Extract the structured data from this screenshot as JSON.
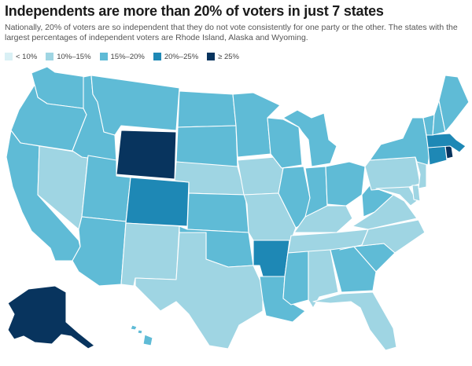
{
  "title": "Independents are more than 20% of voters in just 7 states",
  "subtitle": "Nationally, 20% of voters are so independent that they do not vote consistently for one party or the other. The states with the largest percentages of independent voters are Rhode Island, Alaska and Wyoming.",
  "legend": [
    {
      "label": "< 10%",
      "color": "#d9f0f5"
    },
    {
      "label": "10%–15%",
      "color": "#9fd5e3"
    },
    {
      "label": "15%–20%",
      "color": "#5fbbd6"
    },
    {
      "label": "20%–25%",
      "color": "#1e88b5"
    },
    {
      "label": "≥ 25%",
      "color": "#08345e"
    }
  ],
  "states": {
    "WA": "15-20",
    "OR": "15-20",
    "CA": "15-20",
    "NV": "10-15",
    "ID": "15-20",
    "MT": "15-20",
    "WY": "25+",
    "UT": "15-20",
    "AZ": "15-20",
    "CO": "20-25",
    "NM": "10-15",
    "ND": "15-20",
    "SD": "15-20",
    "NE": "10-15",
    "KS": "15-20",
    "OK": "15-20",
    "TX": "10-15",
    "MN": "15-20",
    "IA": "10-15",
    "MO": "10-15",
    "AR": "20-25",
    "LA": "15-20",
    "WI": "15-20",
    "IL": "15-20",
    "MI": "15-20",
    "IN": "15-20",
    "OH": "15-20",
    "KY": "10-15",
    "TN": "10-15",
    "MS": "15-20",
    "AL": "10-15",
    "GA": "15-20",
    "FL": "10-15",
    "SC": "15-20",
    "NC": "10-15",
    "VA": "10-15",
    "WV": "15-20",
    "MD": "10-15",
    "DE": "10-15",
    "NJ": "10-15",
    "PA": "10-15",
    "NY": "15-20",
    "CT": "20-25",
    "RI": "25+",
    "MA": "20-25",
    "VT": "15-20",
    "NH": "15-20",
    "ME": "15-20",
    "AK": "25+",
    "HI": "15-20"
  }
}
